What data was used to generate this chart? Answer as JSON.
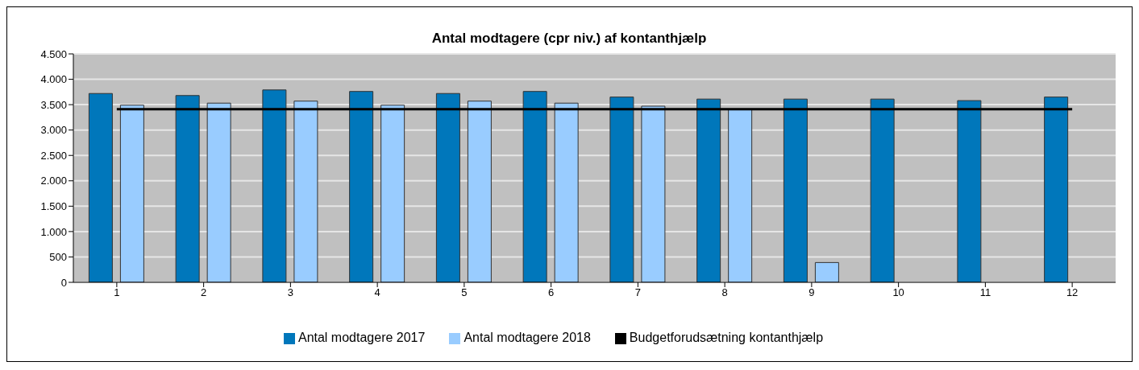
{
  "chart_data": {
    "type": "bar",
    "title": "Antal modtagere (cpr niv.) af kontanthjælp",
    "categories": [
      "1",
      "2",
      "3",
      "4",
      "5",
      "6",
      "7",
      "8",
      "9",
      "10",
      "11",
      "12"
    ],
    "series": [
      {
        "name": "Antal modtagere 2017",
        "color": "#0077bb",
        "values": [
          3720,
          3680,
          3790,
          3760,
          3720,
          3760,
          3650,
          3610,
          3610,
          3610,
          3580,
          3650
        ]
      },
      {
        "name": "Antal modtagere 2018",
        "color": "#99ccff",
        "values": [
          3490,
          3530,
          3570,
          3490,
          3570,
          3530,
          3470,
          3400,
          390,
          null,
          null,
          null
        ]
      },
      {
        "name": "Budgetforudsætning kontanthjælp",
        "type": "line",
        "color": "#000000",
        "values": [
          3410,
          3410,
          3410,
          3410,
          3410,
          3410,
          3410,
          3410,
          3410,
          3410,
          3410,
          3410
        ]
      }
    ],
    "ylim": [
      0,
      4500
    ],
    "yticks": [
      {
        "value": 0,
        "label": "0"
      },
      {
        "value": 500,
        "label": "500"
      },
      {
        "value": 1000,
        "label": "1.000"
      },
      {
        "value": 1500,
        "label": "1.500"
      },
      {
        "value": 2000,
        "label": "2.000"
      },
      {
        "value": 2500,
        "label": "2.500"
      },
      {
        "value": 3000,
        "label": "3.000"
      },
      {
        "value": 3500,
        "label": "3.500"
      },
      {
        "value": 4000,
        "label": "4.000"
      },
      {
        "value": 4500,
        "label": "4.500"
      }
    ],
    "grid": "y",
    "legend": "bottom",
    "marker": "none"
  }
}
